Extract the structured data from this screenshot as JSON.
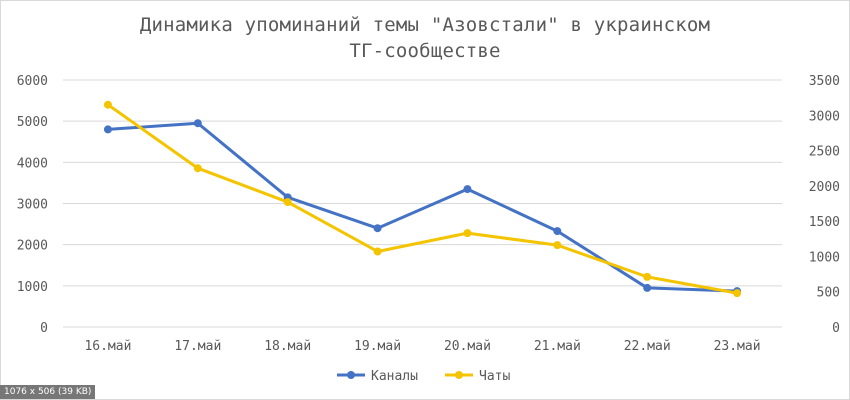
{
  "chart_data": {
    "type": "line",
    "title_line1": "Динамика упоминаний темы \"Азовстали\" в украинском",
    "title_line2": "ТГ-сообществе",
    "categories": [
      "16.май",
      "17.май",
      "18.май",
      "19.май",
      "20.май",
      "21.май",
      "22.май",
      "23.май"
    ],
    "y_left": {
      "ticks": [
        "0",
        "1000",
        "2000",
        "3000",
        "4000",
        "5000",
        "6000"
      ],
      "ylim": [
        0,
        6000
      ]
    },
    "y_right": {
      "ticks": [
        "0",
        "500",
        "1000",
        "1500",
        "2000",
        "2500",
        "3000",
        "3500"
      ],
      "ylim": [
        0,
        3500
      ]
    },
    "series": [
      {
        "name": "Каналы",
        "axis": "left",
        "color": "#4472C4",
        "values": [
          4800,
          4950,
          3150,
          2400,
          3350,
          2330,
          950,
          870
        ]
      },
      {
        "name": "Чаты",
        "axis": "right",
        "color": "#F5C400",
        "values": [
          3150,
          2250,
          1770,
          1070,
          1330,
          1160,
          710,
          480
        ]
      }
    ],
    "grid": true,
    "legend_position": "bottom"
  },
  "footer": {
    "badge": "1076 x 506 (39 KB)"
  }
}
